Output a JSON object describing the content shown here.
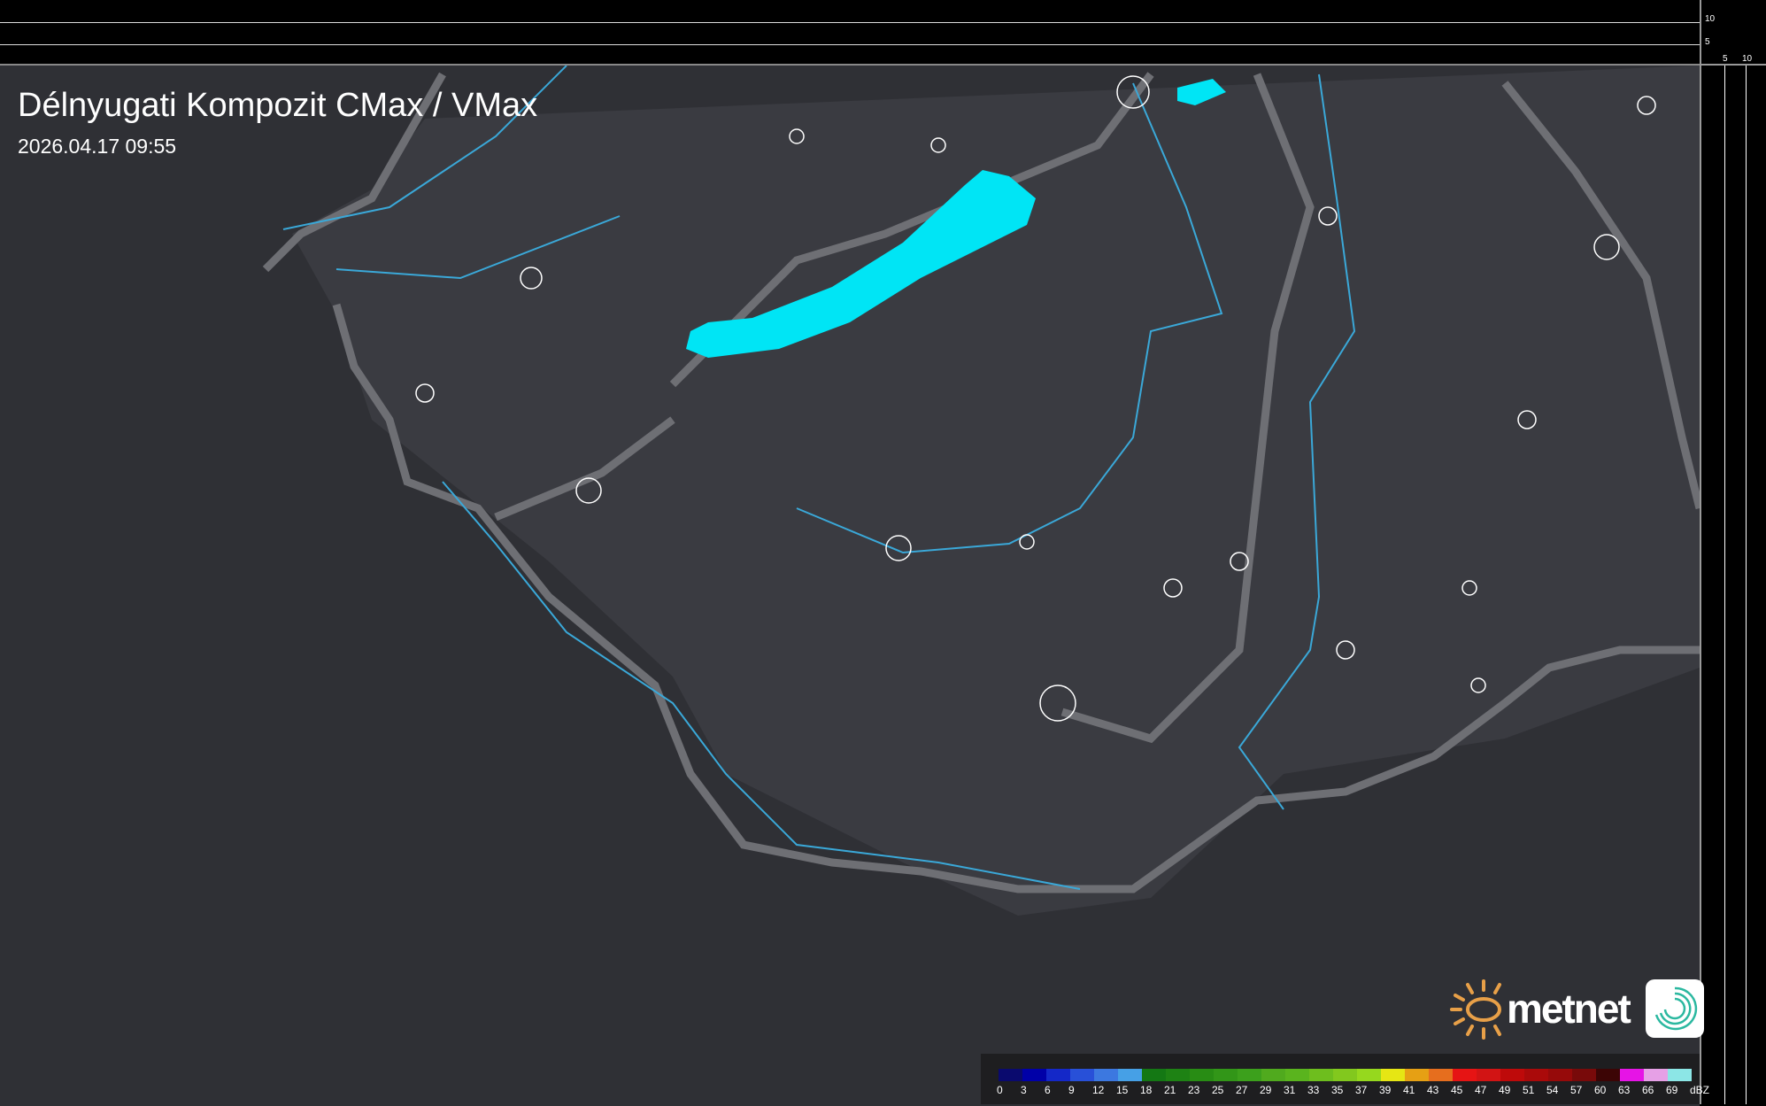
{
  "title": "Délnyugati Kompozit CMax / VMax",
  "timestamp": "2026.04.17 09:55",
  "top_axis": {
    "ticks": [
      "10",
      "5"
    ]
  },
  "right_axis": {
    "ticks": [
      "5",
      "10"
    ]
  },
  "logo": {
    "text": "metnet",
    "sun_color": "#e8a048",
    "app_icon_color": "#2bb8a0"
  },
  "map_colors": {
    "background": "#2f3035",
    "region": "#3a3b41",
    "border": "#6e6f74",
    "river": "#3aa8d8",
    "lake": "#00e5f5",
    "settlement": "#ffffff"
  },
  "legend": {
    "unit": "dBZ",
    "labels": [
      "0",
      "3",
      "6",
      "9",
      "12",
      "15",
      "18",
      "21",
      "23",
      "25",
      "27",
      "29",
      "31",
      "33",
      "35",
      "37",
      "39",
      "41",
      "43",
      "45",
      "47",
      "49",
      "51",
      "54",
      "57",
      "60",
      "63",
      "66",
      "69"
    ],
    "colors": [
      "#0a0a6e",
      "#0000a8",
      "#1428c8",
      "#2850d8",
      "#3c78e0",
      "#46a0e6",
      "#147814",
      "#1e8214",
      "#288c14",
      "#329618",
      "#3ca01c",
      "#50aa1e",
      "#5ab41e",
      "#6ebe1e",
      "#82c81e",
      "#96d81e",
      "#e6e614",
      "#e6a014",
      "#e66e1e",
      "#e61414",
      "#d21414",
      "#be0a0a",
      "#aa0a0a",
      "#960a0a",
      "#780a0a",
      "#3c0505",
      "#e614e6",
      "#e6a0e6",
      "#8ce6e6"
    ]
  }
}
